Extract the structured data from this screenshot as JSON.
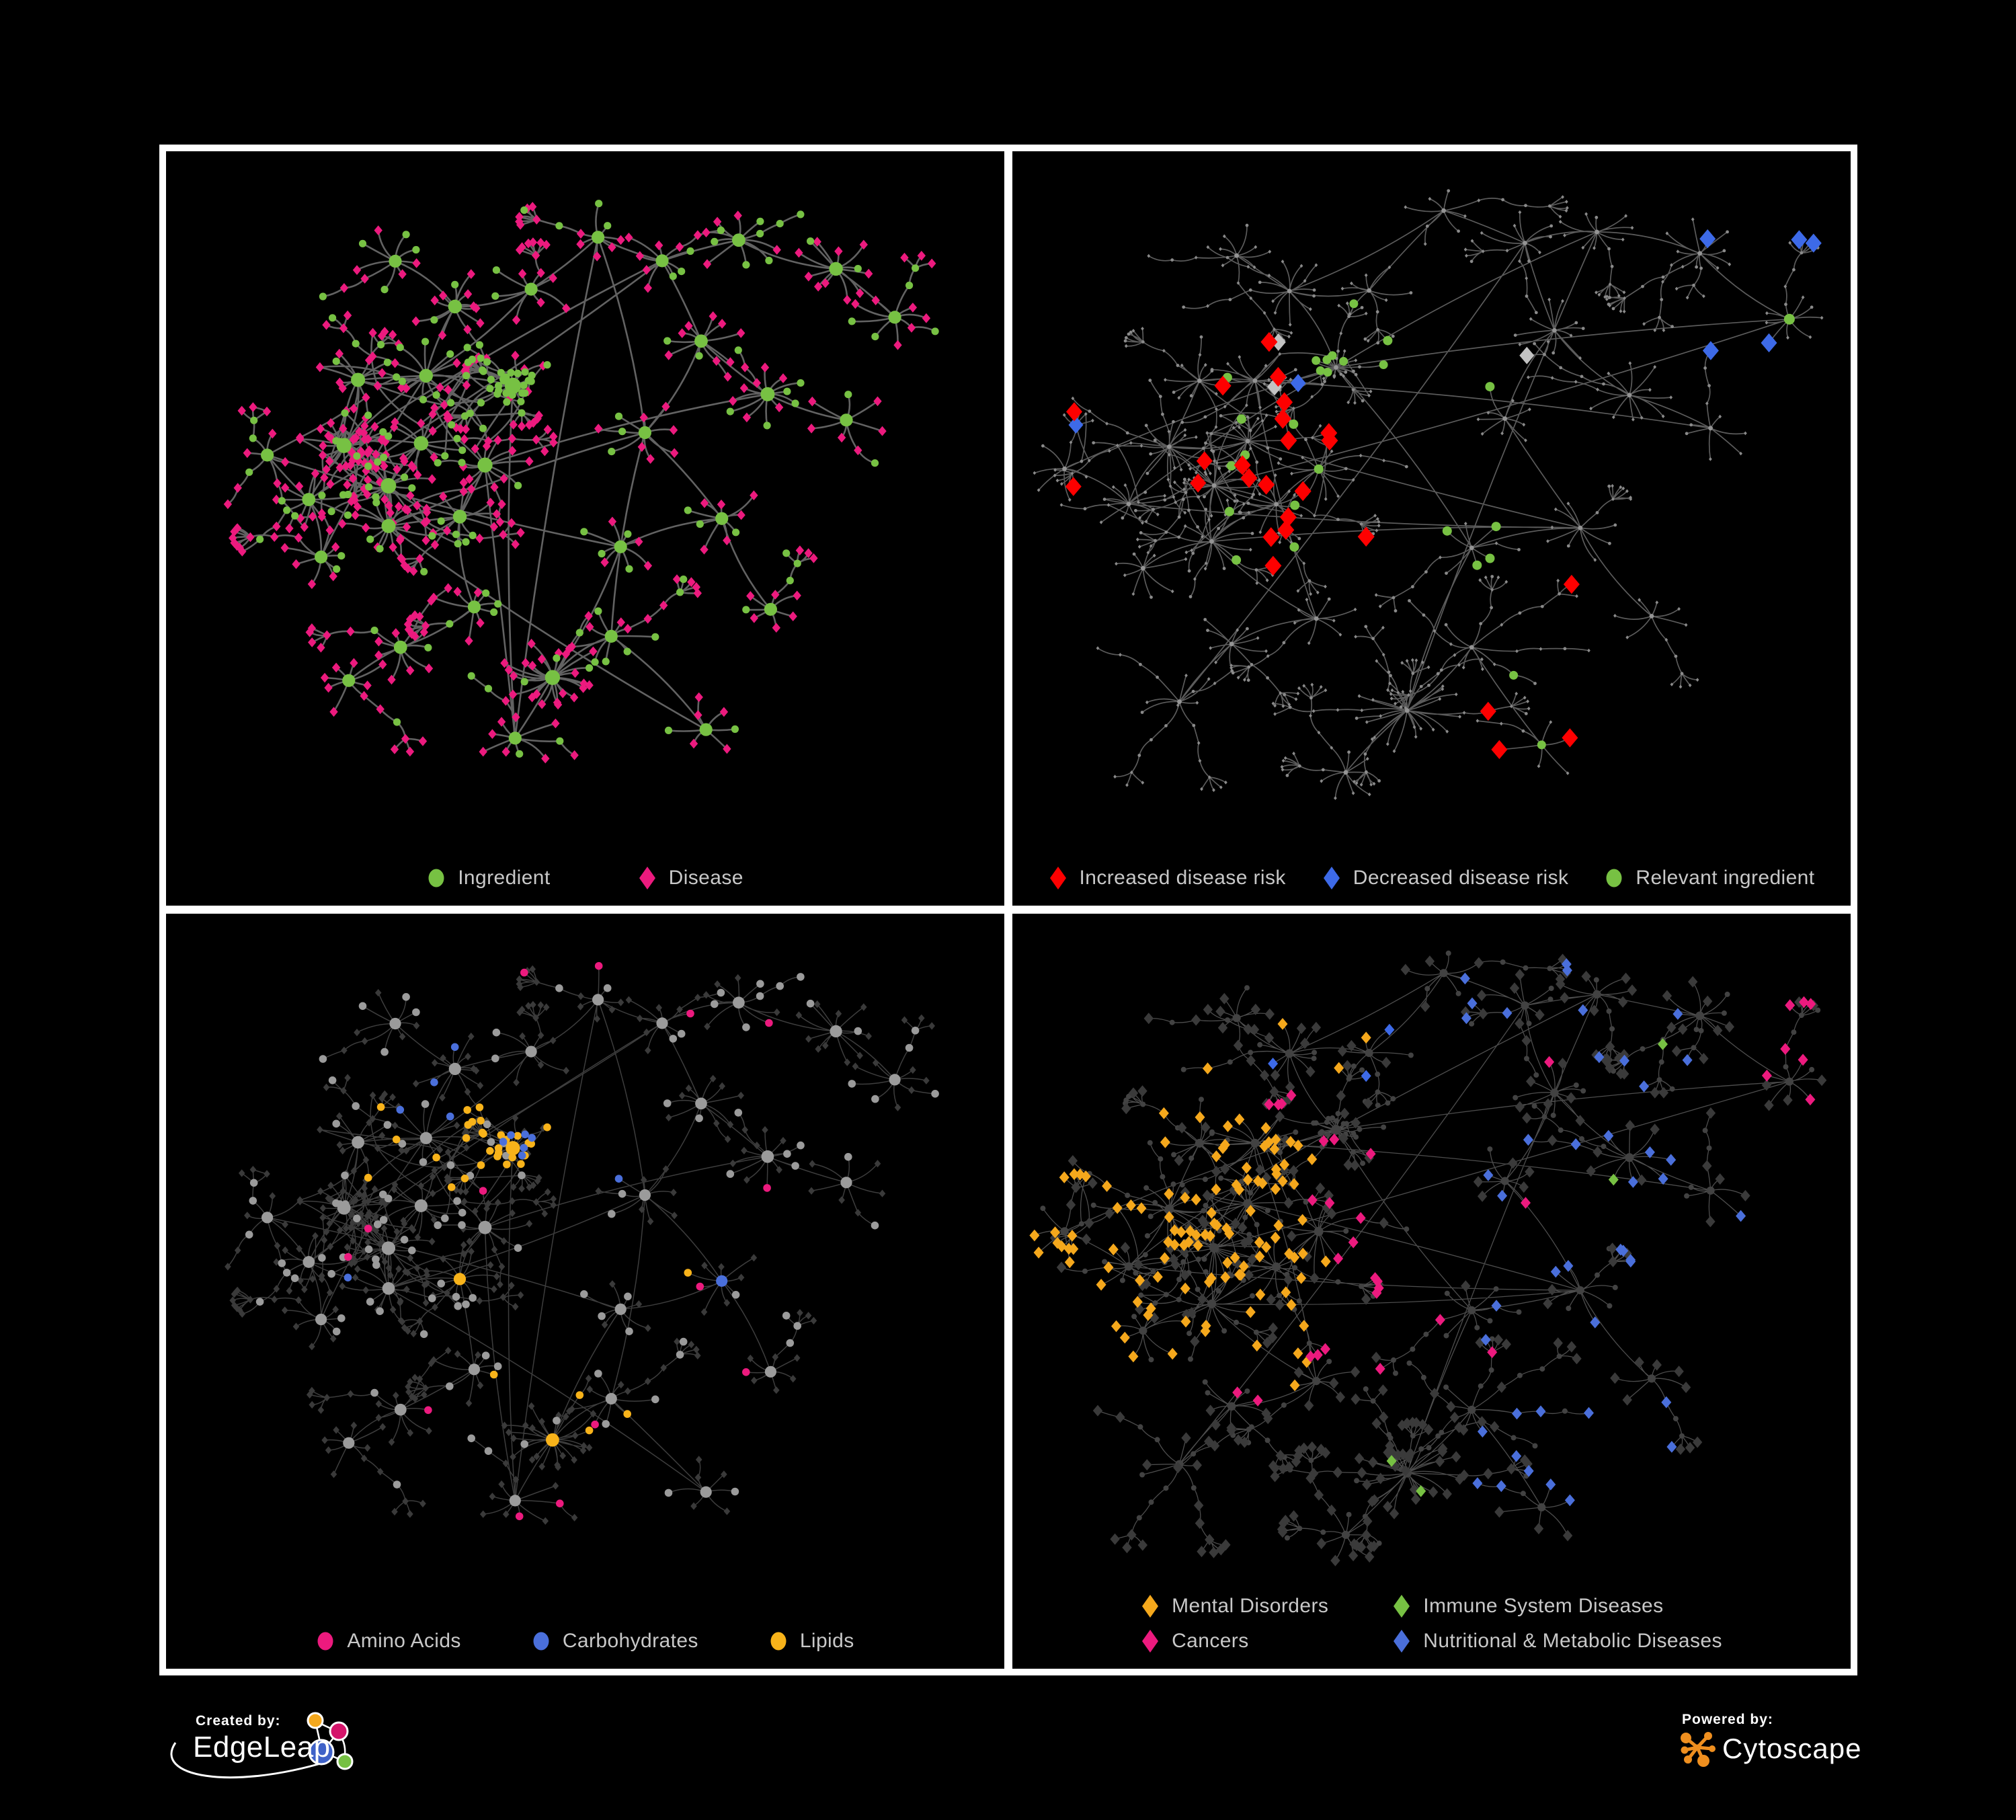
{
  "figure": {
    "background": "#000000",
    "frame_color": "#ffffff"
  },
  "palette": {
    "green": "#77c143",
    "magenta": "#ec1a7e",
    "red": "#fe0000",
    "blue": "#4a6fdb",
    "blue_bright": "#3d6ae8",
    "amber": "#f8b31a",
    "orange": "#f5a81c",
    "silver": "#c2c2c2",
    "skeleton_gray": "#8a8a8a",
    "gray_circle": "#9b9b9b",
    "dark_diamond": "#3a3a3a",
    "dark_circle": "#424242",
    "edge_dark": "#6f6f6f",
    "edge_light": "#9a9a9a",
    "legend_text": "#c8c8c8"
  },
  "panels": [
    {
      "id": "ingredient-disease",
      "legend_layout": "row",
      "legend": [
        {
          "label": "Ingredient",
          "shape": "circle",
          "color": "#77c143"
        },
        {
          "label": "Disease",
          "shape": "diamond",
          "color": "#ec1a7e"
        }
      ]
    },
    {
      "id": "disease-risk",
      "legend_layout": "row",
      "legend": [
        {
          "label": "Increased disease risk",
          "shape": "diamond",
          "color": "#fe0000"
        },
        {
          "label": "Decreased disease risk",
          "shape": "diamond",
          "color": "#3d6ae8"
        },
        {
          "label": "Relevant ingredient",
          "shape": "circle",
          "color": "#77c143"
        }
      ]
    },
    {
      "id": "ingredient-classes",
      "legend_layout": "row",
      "legend": [
        {
          "label": "Amino Acids",
          "shape": "circle",
          "color": "#ec1a7e"
        },
        {
          "label": "Carbohydrates",
          "shape": "circle",
          "color": "#4a6fdb"
        },
        {
          "label": "Lipids",
          "shape": "circle",
          "color": "#f8b31a"
        }
      ]
    },
    {
      "id": "disease-categories",
      "legend_layout": "grid",
      "legend": [
        {
          "label": "Mental Disorders",
          "shape": "diamond",
          "color": "#f5a81c"
        },
        {
          "label": "Immune System Diseases",
          "shape": "diamond",
          "color": "#77c143"
        },
        {
          "label": "Cancers",
          "shape": "diamond",
          "color": "#ec1a7e"
        },
        {
          "label": "Nutritional & Metabolic Diseases",
          "shape": "diamond",
          "color": "#4a6fdb"
        }
      ]
    }
  ],
  "footer": {
    "created_by_label": "Created by:",
    "edgeleap_brand": "EdgeLeap",
    "powered_by_label": "Powered by:",
    "cytoscape_brand": "Cytoscape",
    "cytoscape_logo_color": "#ef8f1f",
    "edgeleap_logo_colors": [
      "#f4a81d",
      "#d4146a",
      "#3f62c8",
      "#76c043"
    ]
  }
}
